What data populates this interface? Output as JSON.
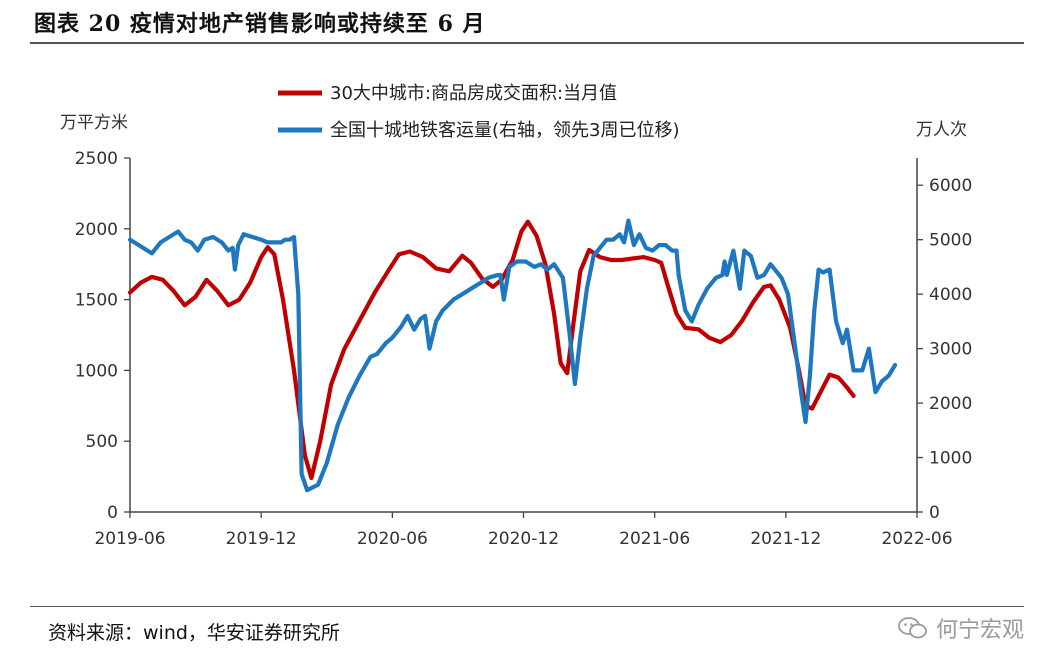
{
  "header": {
    "title": "图表 20  疫情对地产销售影响或持续至 6 月"
  },
  "footer": {
    "source": "资料来源：wind，华安证券研究所",
    "watermark": "何宁宏观"
  },
  "colors": {
    "red": "#c00000",
    "blue": "#1f77c0",
    "axis": "#444444"
  },
  "chart_data": {
    "type": "line",
    "title": "图表 20  疫情对地产销售影响或持续至 6 月",
    "ylabel_left": "万平方米",
    "ylabel_right": "万人次",
    "y_left": {
      "min": 0,
      "max": 2500,
      "ticks": [
        0,
        500,
        1000,
        1500,
        2000,
        2500
      ]
    },
    "y_right": {
      "min": 0,
      "max": 6500,
      "ticks": [
        0,
        1000,
        2000,
        3000,
        4000,
        5000,
        6000
      ]
    },
    "x_ticks": [
      "2019-06",
      "2019-12",
      "2020-06",
      "2020-12",
      "2021-06",
      "2021-12",
      "2022-06"
    ],
    "legend": [
      "30大中城市:商品房成交面积:当月值",
      "全国十城地铁客运量(右轴，领先3周已位移)"
    ],
    "series": [
      {
        "name": "30大中城市:商品房成交面积:当月值",
        "axis": "left",
        "color": "#c00000",
        "points": [
          [
            0,
            1550
          ],
          [
            0.5,
            1620
          ],
          [
            1,
            1660
          ],
          [
            1.5,
            1640
          ],
          [
            2,
            1560
          ],
          [
            2.5,
            1460
          ],
          [
            3,
            1520
          ],
          [
            3.5,
            1640
          ],
          [
            4,
            1560
          ],
          [
            4.5,
            1460
          ],
          [
            5,
            1500
          ],
          [
            5.5,
            1620
          ],
          [
            6,
            1800
          ],
          [
            6.3,
            1870
          ],
          [
            6.6,
            1820
          ],
          [
            7,
            1500
          ],
          [
            7.5,
            1000
          ],
          [
            8,
            400
          ],
          [
            8.3,
            240
          ],
          [
            8.7,
            500
          ],
          [
            9.2,
            900
          ],
          [
            9.8,
            1150
          ],
          [
            10.5,
            1350
          ],
          [
            11.2,
            1550
          ],
          [
            11.8,
            1700
          ],
          [
            12.3,
            1820
          ],
          [
            12.8,
            1840
          ],
          [
            13.4,
            1800
          ],
          [
            14,
            1720
          ],
          [
            14.6,
            1700
          ],
          [
            15.2,
            1810
          ],
          [
            15.6,
            1760
          ],
          [
            16.1,
            1650
          ],
          [
            16.6,
            1590
          ],
          [
            17,
            1640
          ],
          [
            17.5,
            1780
          ],
          [
            17.9,
            1980
          ],
          [
            18.2,
            2050
          ],
          [
            18.6,
            1950
          ],
          [
            19,
            1750
          ],
          [
            19.4,
            1400
          ],
          [
            19.7,
            1050
          ],
          [
            20,
            980
          ],
          [
            20.3,
            1350
          ],
          [
            20.6,
            1700
          ],
          [
            21,
            1850
          ],
          [
            21.5,
            1800
          ],
          [
            22,
            1780
          ],
          [
            22.5,
            1780
          ],
          [
            23,
            1790
          ],
          [
            23.5,
            1800
          ],
          [
            24,
            1780
          ],
          [
            24.3,
            1760
          ],
          [
            24.6,
            1600
          ],
          [
            25,
            1400
          ],
          [
            25.4,
            1300
          ],
          [
            26,
            1290
          ],
          [
            26.5,
            1230
          ],
          [
            27,
            1200
          ],
          [
            27.5,
            1250
          ],
          [
            28,
            1350
          ],
          [
            28.5,
            1480
          ],
          [
            29,
            1590
          ],
          [
            29.3,
            1600
          ],
          [
            29.7,
            1500
          ],
          [
            30.2,
            1300
          ],
          [
            30.6,
            1000
          ],
          [
            30.9,
            750
          ],
          [
            31.2,
            730
          ],
          [
            31.6,
            850
          ],
          [
            32,
            970
          ],
          [
            32.4,
            950
          ],
          [
            32.8,
            880
          ],
          [
            33.1,
            820
          ]
        ]
      },
      {
        "name": "全国十城地铁客运量(右轴，领先3周已位移)",
        "axis": "right",
        "color": "#1f77c0",
        "points": [
          [
            0,
            5000
          ],
          [
            0.4,
            4900
          ],
          [
            0.8,
            4800
          ],
          [
            1,
            4750
          ],
          [
            1.4,
            4950
          ],
          [
            1.8,
            5050
          ],
          [
            2.2,
            5150
          ],
          [
            2.5,
            5000
          ],
          [
            2.8,
            4950
          ],
          [
            3.1,
            4800
          ],
          [
            3.4,
            5000
          ],
          [
            3.8,
            5050
          ],
          [
            4.2,
            4950
          ],
          [
            4.5,
            4800
          ],
          [
            4.7,
            4850
          ],
          [
            4.8,
            4450
          ],
          [
            4.95,
            4900
          ],
          [
            5.2,
            5100
          ],
          [
            5.6,
            5050
          ],
          [
            6,
            5000
          ],
          [
            6.3,
            4950
          ],
          [
            6.6,
            4950
          ],
          [
            6.9,
            4950
          ],
          [
            7.1,
            5000
          ],
          [
            7.3,
            5000
          ],
          [
            7.5,
            5050
          ],
          [
            7.7,
            4000
          ],
          [
            7.85,
            700
          ],
          [
            8.1,
            400
          ],
          [
            8.6,
            500
          ],
          [
            9,
            900
          ],
          [
            9.5,
            1600
          ],
          [
            10,
            2100
          ],
          [
            10.5,
            2500
          ],
          [
            11,
            2850
          ],
          [
            11.3,
            2900
          ],
          [
            11.7,
            3100
          ],
          [
            12,
            3200
          ],
          [
            12.4,
            3400
          ],
          [
            12.7,
            3600
          ],
          [
            13,
            3350
          ],
          [
            13.3,
            3550
          ],
          [
            13.5,
            3600
          ],
          [
            13.7,
            3000
          ],
          [
            14,
            3500
          ],
          [
            14.3,
            3700
          ],
          [
            14.8,
            3900
          ],
          [
            15.2,
            4000
          ],
          [
            15.6,
            4100
          ],
          [
            16,
            4200
          ],
          [
            16.4,
            4300
          ],
          [
            16.8,
            4350
          ],
          [
            16.95,
            4350
          ],
          [
            17.1,
            3900
          ],
          [
            17.35,
            4500
          ],
          [
            17.7,
            4600
          ],
          [
            18.1,
            4600
          ],
          [
            18.5,
            4500
          ],
          [
            18.8,
            4550
          ],
          [
            19.1,
            4450
          ],
          [
            19.4,
            4550
          ],
          [
            19.8,
            4300
          ],
          [
            20.1,
            3300
          ],
          [
            20.35,
            2350
          ],
          [
            20.6,
            3200
          ],
          [
            20.9,
            4100
          ],
          [
            21.2,
            4700
          ],
          [
            21.6,
            4900
          ],
          [
            21.8,
            5000
          ],
          [
            22.1,
            5000
          ],
          [
            22.4,
            5100
          ],
          [
            22.6,
            4950
          ],
          [
            22.8,
            5350
          ],
          [
            23.05,
            4900
          ],
          [
            23.3,
            5100
          ],
          [
            23.6,
            4850
          ],
          [
            23.9,
            4800
          ],
          [
            24.2,
            4900
          ],
          [
            24.5,
            4900
          ],
          [
            24.8,
            4800
          ],
          [
            25,
            4800
          ],
          [
            25.1,
            4350
          ],
          [
            25.4,
            3700
          ],
          [
            25.7,
            3500
          ],
          [
            26,
            3800
          ],
          [
            26.4,
            4100
          ],
          [
            26.8,
            4300
          ],
          [
            27.1,
            4350
          ],
          [
            27.2,
            4600
          ],
          [
            27.3,
            4350
          ],
          [
            27.6,
            4800
          ],
          [
            27.9,
            4100
          ],
          [
            28.1,
            4800
          ],
          [
            28.4,
            4700
          ],
          [
            28.7,
            4300
          ],
          [
            29,
            4350
          ],
          [
            29.3,
            4550
          ],
          [
            29.5,
            4450
          ],
          [
            29.8,
            4300
          ],
          [
            30.1,
            4000
          ],
          [
            30.4,
            3100
          ],
          [
            30.7,
            2200
          ],
          [
            30.9,
            1650
          ],
          [
            31.1,
            2500
          ],
          [
            31.3,
            3700
          ],
          [
            31.5,
            4450
          ],
          [
            31.7,
            4400
          ],
          [
            32,
            4450
          ],
          [
            32.3,
            3500
          ],
          [
            32.6,
            3100
          ],
          [
            32.8,
            3350
          ],
          [
            33.1,
            2600
          ],
          [
            33.5,
            2600
          ],
          [
            33.8,
            3000
          ],
          [
            34.1,
            2200
          ],
          [
            34.4,
            2400
          ],
          [
            34.7,
            2500
          ],
          [
            35,
            2700
          ]
        ]
      }
    ]
  }
}
